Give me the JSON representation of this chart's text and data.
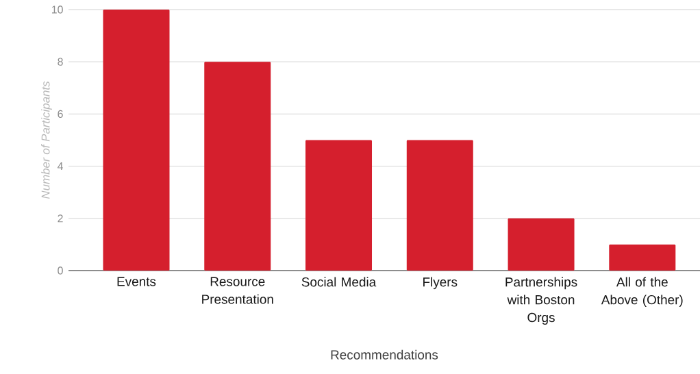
{
  "chart_data": {
    "type": "bar",
    "xlabel": "Recommendations",
    "ylabel": "Number of Participants",
    "categories": [
      "Events",
      "Resource Presentation",
      "Social Media",
      "Flyers",
      "Partnerships with Boston Orgs",
      "All of the Above (Other)"
    ],
    "values": [
      10,
      8,
      5,
      5,
      2,
      1
    ],
    "color": "#d51f2d",
    "ylim": [
      0,
      10
    ],
    "yticks": [
      0,
      2,
      4,
      6,
      8,
      10
    ],
    "grid": "y"
  }
}
